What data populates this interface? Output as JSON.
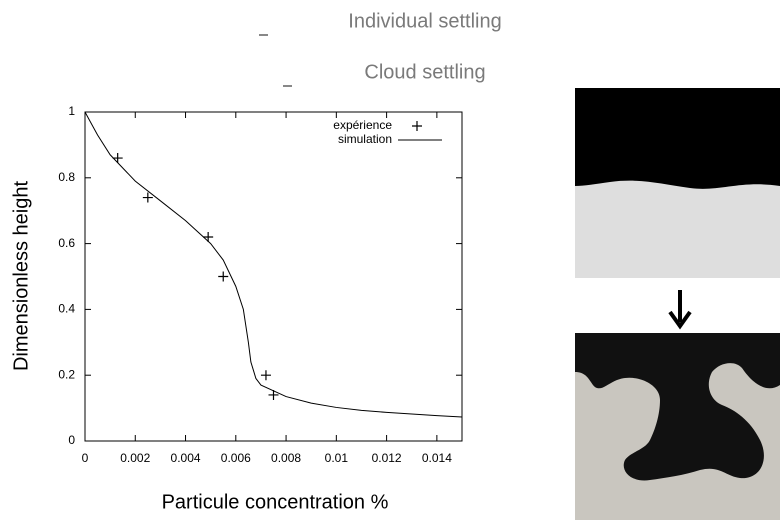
{
  "chart_data": {
    "type": "line",
    "annotations": [
      "Individual settling",
      "Cloud settling"
    ],
    "xlabel": "Particule concentration %",
    "ylabel": "Dimensionless height",
    "xlim": [
      0,
      0.015
    ],
    "ylim": [
      0,
      1
    ],
    "xticks": [
      0,
      0.002,
      0.004,
      0.006,
      0.008,
      0.01,
      0.012,
      0.014
    ],
    "yticks": [
      0,
      0.2,
      0.4,
      0.6,
      0.8,
      1
    ],
    "legend": "top-right",
    "series": [
      {
        "name": "expérience",
        "color": "#000000",
        "style": "points",
        "x": [
          0.0013,
          0.0025,
          0.0049,
          0.0055,
          0.0072,
          0.0075
        ],
        "values": [
          0.86,
          0.74,
          0.62,
          0.5,
          0.2,
          0.14
        ]
      },
      {
        "name": "simulation",
        "color": "#000000",
        "style": "line",
        "x": [
          0,
          0.0005,
          0.001,
          0.002,
          0.003,
          0.004,
          0.005,
          0.0055,
          0.006,
          0.0063,
          0.0065,
          0.0066,
          0.0068,
          0.007,
          0.008,
          0.009,
          0.01,
          0.011,
          0.012,
          0.013,
          0.014,
          0.015
        ],
        "values": [
          1,
          0.93,
          0.87,
          0.79,
          0.73,
          0.67,
          0.6,
          0.55,
          0.47,
          0.4,
          0.3,
          0.24,
          0.19,
          0.17,
          0.135,
          0.115,
          0.102,
          0.093,
          0.087,
          0.082,
          0.077,
          0.073
        ]
      }
    ]
  }
}
